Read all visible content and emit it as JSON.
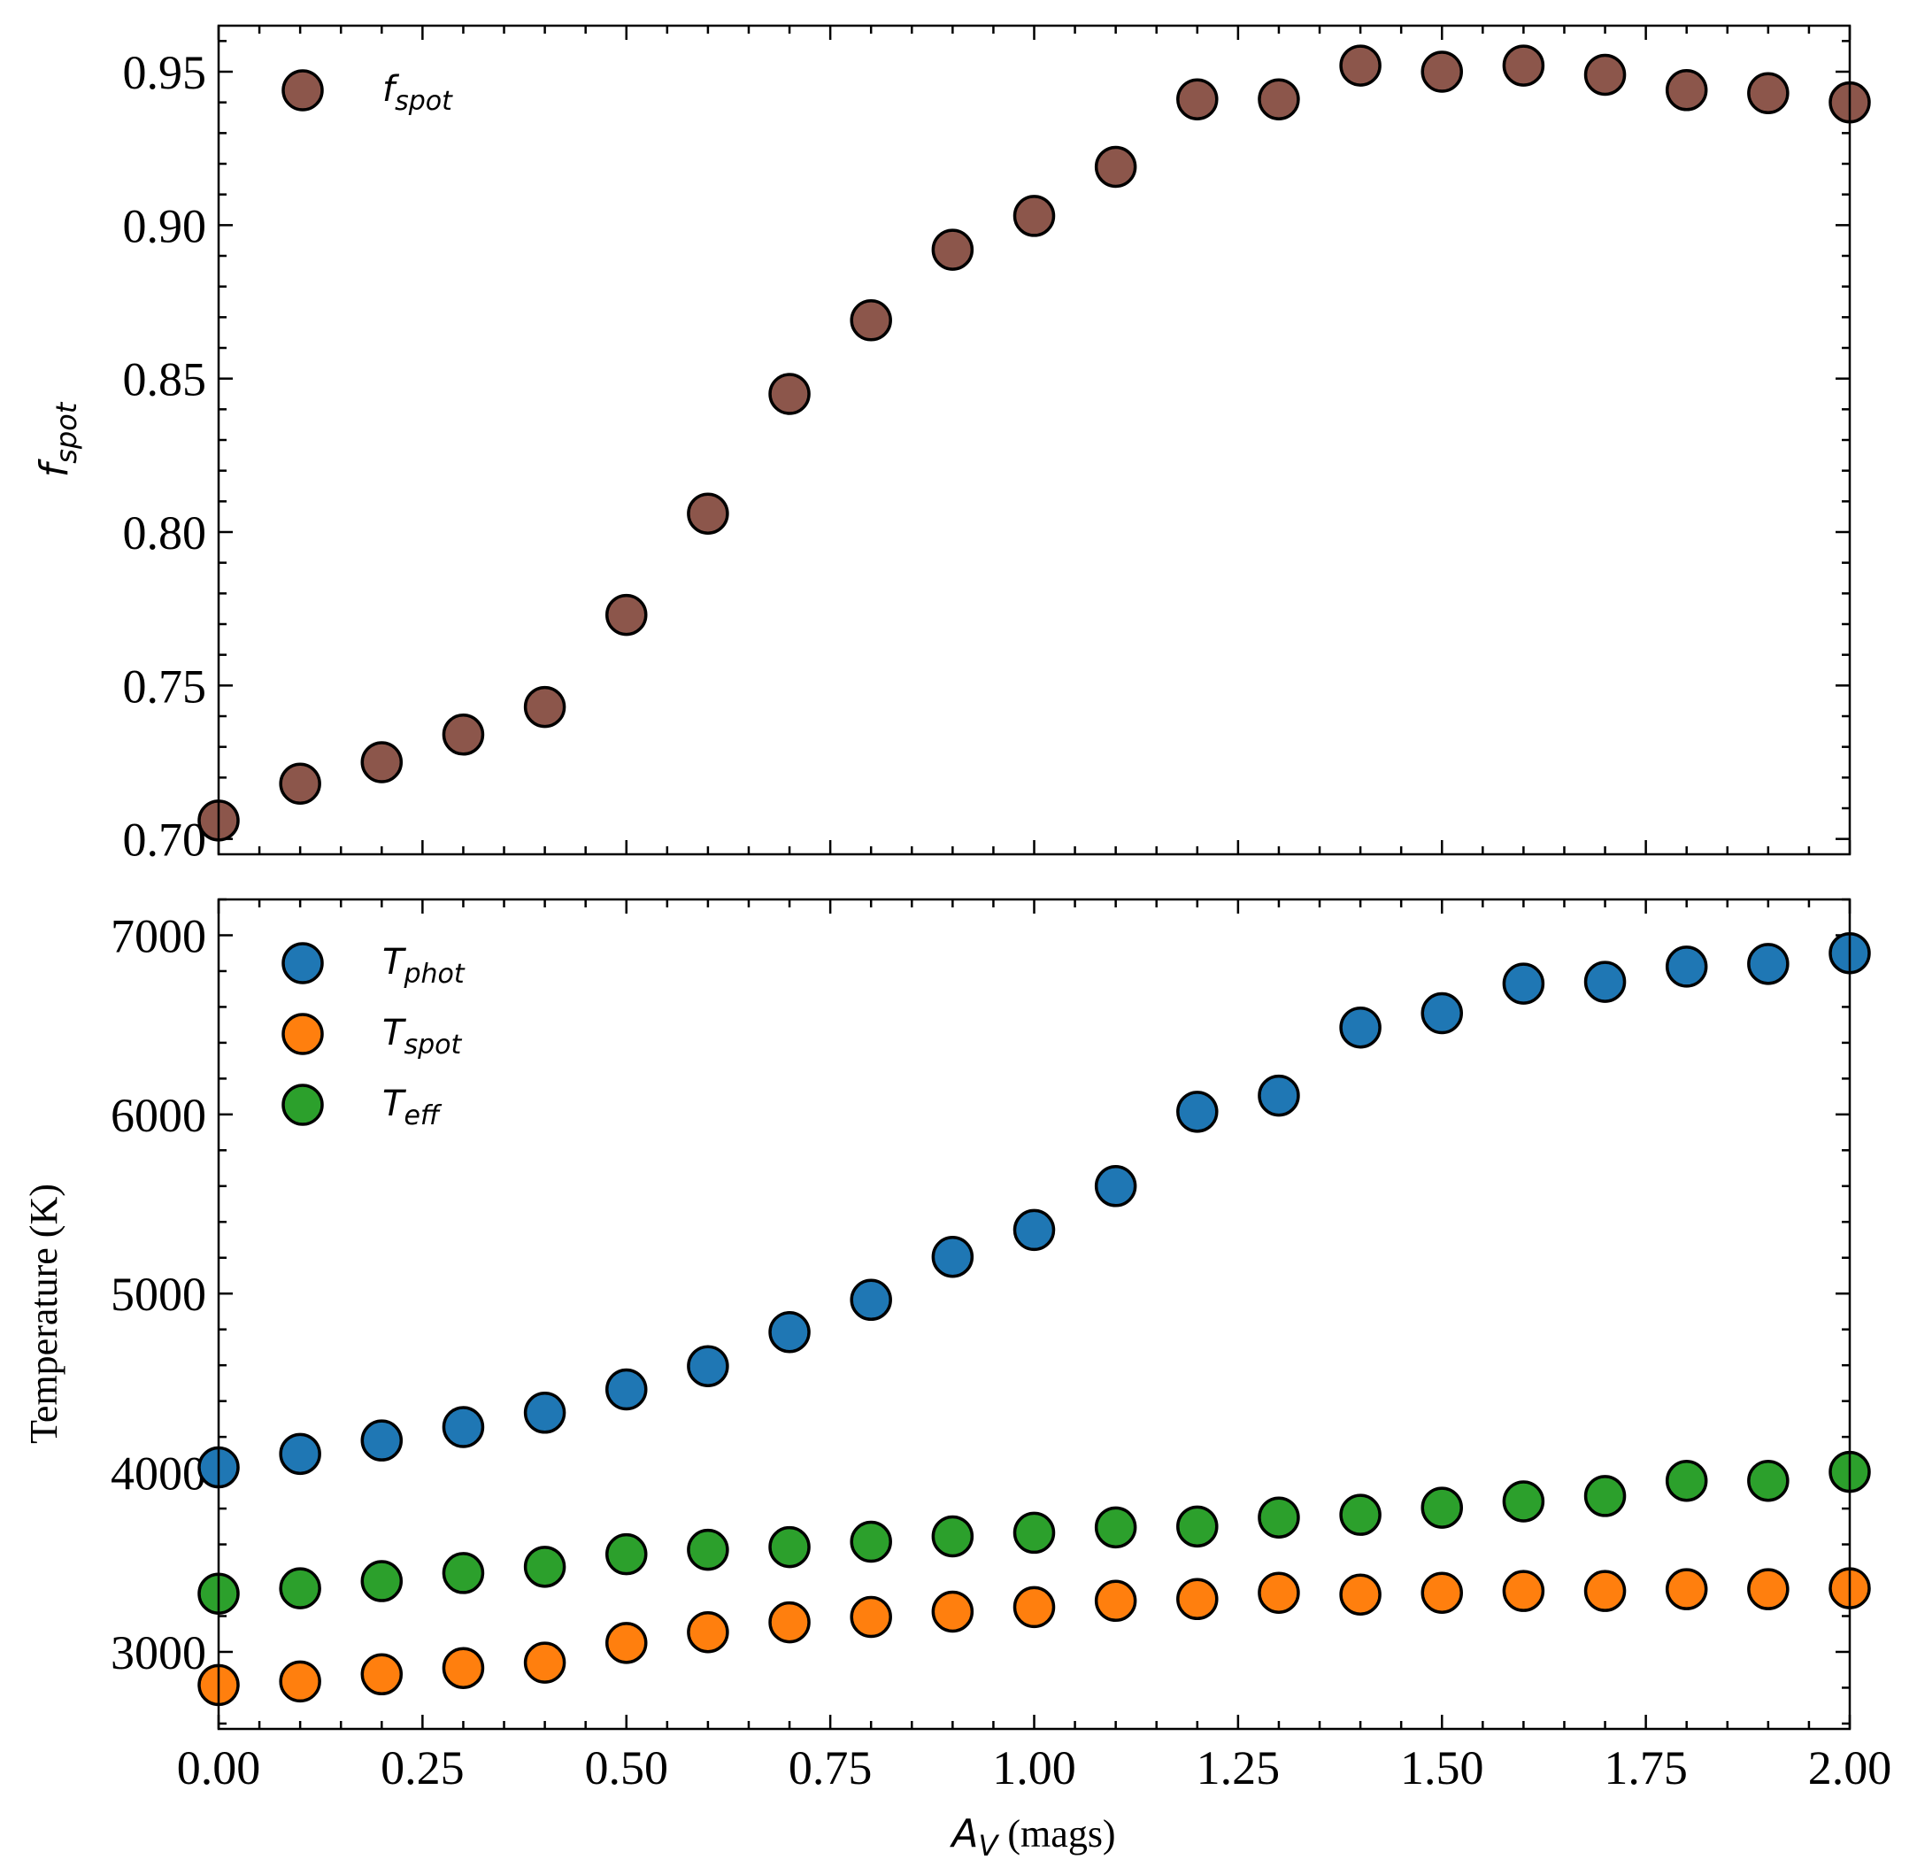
{
  "chart_data": [
    {
      "type": "scatter",
      "panel": "top",
      "x": [
        0.0,
        0.1,
        0.2,
        0.3,
        0.4,
        0.5,
        0.6,
        0.7,
        0.8,
        0.9,
        1.0,
        1.1,
        1.2,
        1.3,
        1.4,
        1.5,
        1.6,
        1.7,
        1.8,
        1.9,
        2.0
      ],
      "series": [
        {
          "name": "f",
          "subscript": "spot",
          "color": "#8c564b",
          "values": [
            0.706,
            0.718,
            0.725,
            0.734,
            0.743,
            0.773,
            0.806,
            0.845,
            0.869,
            0.892,
            0.903,
            0.919,
            0.941,
            0.941,
            0.952,
            0.95,
            0.952,
            0.949,
            0.944,
            0.943,
            0.94
          ]
        }
      ],
      "xlim": [
        0.0,
        2.0
      ],
      "ylim": [
        0.695,
        0.965
      ],
      "yticks": [
        0.7,
        0.75,
        0.8,
        0.85,
        0.9,
        0.95
      ],
      "ytick_labels": [
        "0.70",
        "0.75",
        "0.80",
        "0.85",
        "0.90",
        "0.95"
      ],
      "ylabel": {
        "main": "f",
        "sub": "spot"
      },
      "legend_position": "top-left"
    },
    {
      "type": "scatter",
      "panel": "bottom",
      "x": [
        0.0,
        0.1,
        0.2,
        0.3,
        0.4,
        0.5,
        0.6,
        0.7,
        0.8,
        0.9,
        1.0,
        1.1,
        1.2,
        1.3,
        1.4,
        1.5,
        1.6,
        1.7,
        1.8,
        1.9,
        2.0
      ],
      "series": [
        {
          "name": "T",
          "subscript": "phot",
          "color": "#1f77b4",
          "values": [
            4030,
            4105,
            4180,
            4255,
            4335,
            4465,
            4595,
            4785,
            4965,
            5205,
            5355,
            5600,
            6015,
            6105,
            6485,
            6565,
            6730,
            6740,
            6825,
            6840,
            6900
          ]
        },
        {
          "name": "T",
          "subscript": "spot",
          "color": "#ff7f0e",
          "values": [
            2815,
            2835,
            2875,
            2910,
            2940,
            3050,
            3110,
            3165,
            3195,
            3225,
            3250,
            3285,
            3295,
            3330,
            3320,
            3330,
            3340,
            3340,
            3350,
            3350,
            3355
          ]
        },
        {
          "name": "T",
          "subscript": "eff",
          "color": "#2ca02c",
          "values": [
            3325,
            3355,
            3395,
            3440,
            3475,
            3545,
            3570,
            3585,
            3615,
            3645,
            3665,
            3695,
            3700,
            3750,
            3765,
            3805,
            3840,
            3870,
            3955,
            3955,
            4005
          ]
        }
      ],
      "xlim": [
        0.0,
        2.0
      ],
      "ylim": [
        2570,
        7200
      ],
      "xticks": [
        0.0,
        0.25,
        0.5,
        0.75,
        1.0,
        1.25,
        1.5,
        1.75,
        2.0
      ],
      "xtick_labels": [
        "0.00",
        "0.25",
        "0.50",
        "0.75",
        "1.00",
        "1.25",
        "1.50",
        "1.75",
        "2.00"
      ],
      "yticks": [
        3000,
        4000,
        5000,
        6000,
        7000
      ],
      "ytick_labels": [
        "3000",
        "4000",
        "5000",
        "6000",
        "7000"
      ],
      "xlabel": {
        "main": "A",
        "sub": "V",
        "rest": " (mags)"
      },
      "ylabel": "Temperature (K)",
      "legend_position": "top-left"
    }
  ]
}
